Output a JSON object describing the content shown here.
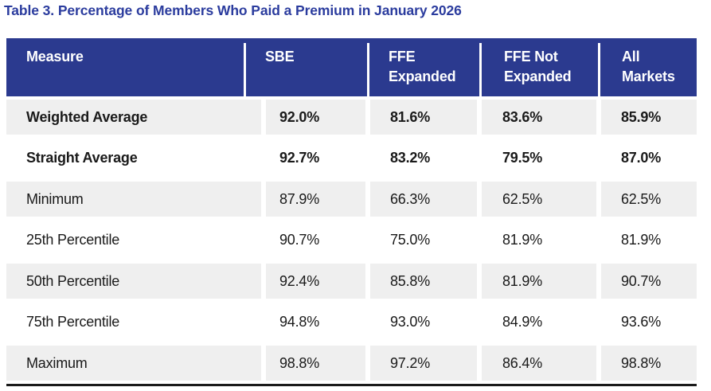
{
  "title": "Table 3. Percentage of Members Who Paid a Premium in January 2026",
  "table": {
    "columns": [
      "Measure",
      "SBE",
      "FFE\nExpanded",
      "FFE Not\nExpanded",
      "All\nMarkets"
    ],
    "rows": [
      {
        "label": "Weighted Average",
        "values": [
          "92.0%",
          "81.6%",
          "83.6%",
          "85.9%"
        ]
      },
      {
        "label": "Straight Average",
        "values": [
          "92.7%",
          "83.2%",
          "79.5%",
          "87.0%"
        ]
      },
      {
        "label": "Minimum",
        "values": [
          "87.9%",
          "66.3%",
          "62.5%",
          "62.5%"
        ]
      },
      {
        "label": "25th Percentile",
        "values": [
          "90.7%",
          "75.0%",
          "81.9%",
          "81.9%"
        ]
      },
      {
        "label": "50th Percentile",
        "values": [
          "92.4%",
          "85.8%",
          "81.9%",
          "90.7%"
        ]
      },
      {
        "label": "75th Percentile",
        "values": [
          "94.8%",
          "93.0%",
          "84.9%",
          "93.6%"
        ]
      },
      {
        "label": "Maximum",
        "values": [
          "98.8%",
          "97.2%",
          "86.4%",
          "98.8%"
        ]
      }
    ],
    "colors": {
      "header_background": "#2B3A8F",
      "title_text": "#2B3C9E",
      "shaded_row_background": "#EFEFEF",
      "body_text": "#1A1A1A",
      "bottom_rule": "#1A1A1A"
    }
  }
}
